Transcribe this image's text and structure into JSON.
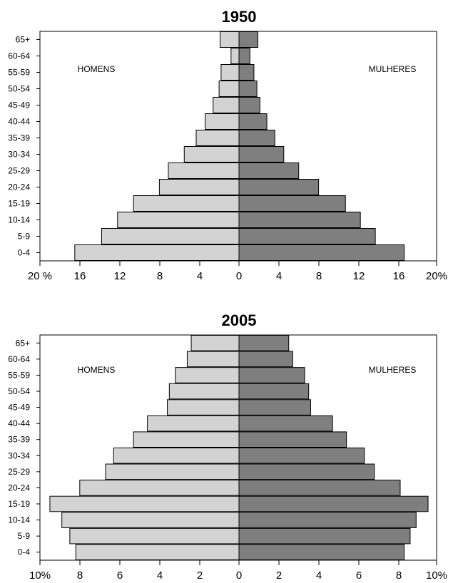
{
  "chart_data": [
    {
      "type": "bar",
      "title": "1950",
      "categories": [
        "0-4",
        "5-9",
        "10-14",
        "15-19",
        "20-24",
        "25-29",
        "30-34",
        "35-39",
        "40-44",
        "45-49",
        "50-54",
        "55-59",
        "60-64",
        "65+"
      ],
      "xlim": [
        -20,
        20
      ],
      "x_tick_labels": [
        "20 %",
        "16",
        "12",
        "8",
        "4",
        "0",
        "4",
        "8",
        "12",
        "16",
        "20%"
      ],
      "left_label": "HOMENS",
      "right_label": "MULHERES",
      "series": [
        {
          "side": "left",
          "color": "#d3d3d3",
          "values": [
            16.5,
            13.8,
            12.2,
            10.6,
            8.0,
            7.1,
            5.5,
            4.3,
            3.4,
            2.6,
            2.0,
            1.8,
            0.8,
            1.9
          ]
        },
        {
          "side": "right",
          "color": "#7f7f7f",
          "values": [
            16.6,
            13.7,
            12.2,
            10.7,
            8.0,
            6.0,
            4.5,
            3.6,
            2.8,
            2.1,
            1.8,
            1.5,
            1.1,
            1.9
          ]
        }
      ]
    },
    {
      "type": "bar",
      "title": "2005",
      "categories": [
        "0-4",
        "5-9",
        "10-14",
        "15-19",
        "20-24",
        "25-29",
        "30-34",
        "35-39",
        "40-44",
        "45-49",
        "50-54",
        "55-59",
        "60-64",
        "65+"
      ],
      "xlim": [
        -10,
        10
      ],
      "x_tick_labels": [
        "10%",
        "8",
        "6",
        "4",
        "2",
        "0",
        "2",
        "4",
        "6",
        "8",
        "10%"
      ],
      "left_label": "HOMENS",
      "right_label": "MULHERES",
      "series": [
        {
          "side": "left",
          "color": "#d3d3d3",
          "values": [
            8.2,
            8.5,
            8.9,
            9.5,
            8.0,
            6.7,
            6.3,
            5.3,
            4.6,
            3.6,
            3.5,
            3.2,
            2.6,
            2.4
          ]
        },
        {
          "side": "right",
          "color": "#7f7f7f",
          "values": [
            8.3,
            8.6,
            8.9,
            9.5,
            8.1,
            6.8,
            6.3,
            5.4,
            4.7,
            3.6,
            3.5,
            3.3,
            2.7,
            2.5
          ]
        }
      ]
    }
  ]
}
